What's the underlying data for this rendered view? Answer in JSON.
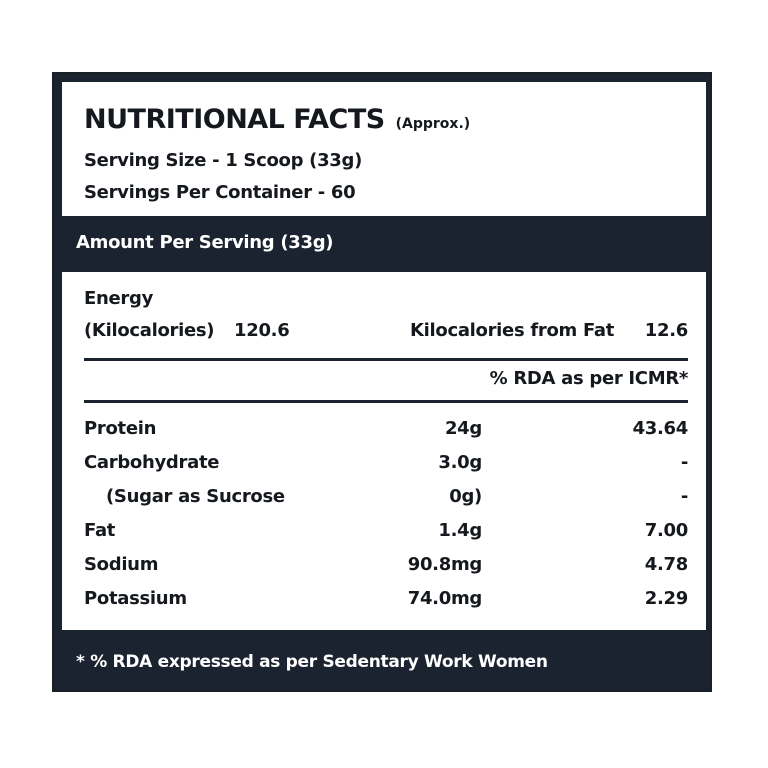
{
  "header": {
    "title": "NUTRITIONAL FACTS",
    "title_note": "(Approx.)",
    "serving_size": "Serving Size - 1 Scoop (33g)",
    "servings_per_container": "Servings Per Container - 60"
  },
  "amount_bar": "Amount Per Serving (33g)",
  "energy": {
    "label": "Energy",
    "kcal_label": "(Kilocalories)",
    "kcal_value": "120.6",
    "fat_kcal_label": "Kilocalories from Fat",
    "fat_kcal_value": "12.6"
  },
  "rda_header": "% RDA as per ICMR*",
  "nutrients": [
    {
      "name": "Protein",
      "amount": "24g",
      "rda": "43.64"
    },
    {
      "name": "Carbohydrate",
      "amount": "3.0g",
      "rda": "-"
    },
    {
      "name": "(Sugar as Sucrose",
      "amount": "0g)",
      "rda": "-"
    },
    {
      "name": "Fat",
      "amount": "1.4g",
      "rda": "7.00"
    },
    {
      "name": "Sodium",
      "amount": "90.8mg",
      "rda": "4.78"
    },
    {
      "name": "Potassium",
      "amount": "74.0mg",
      "rda": "2.29"
    }
  ],
  "footer": "* % RDA expressed as per Sedentary Work Women",
  "colors": {
    "dark_band": "#1b2330",
    "text": "#15191e"
  }
}
